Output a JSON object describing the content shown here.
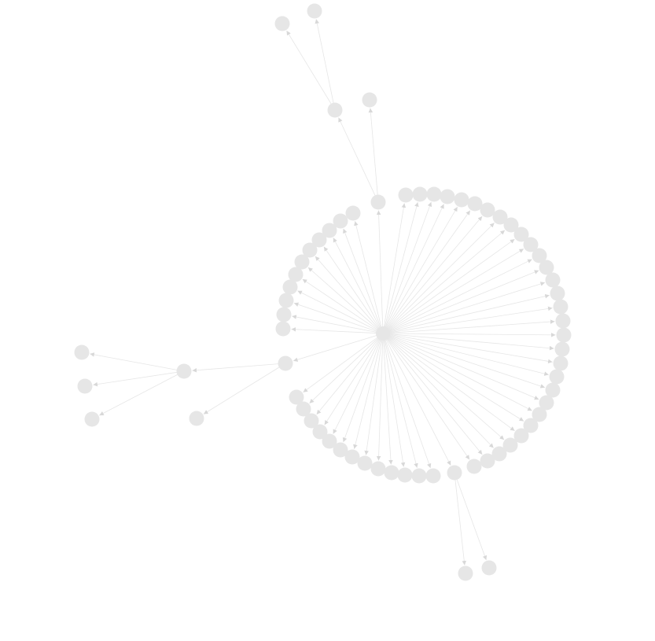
{
  "graph": {
    "type": "directed-graph",
    "node_color": "#e6e6e6",
    "edge_color": "#e6e6e6",
    "background": "#ffffff",
    "hub_outer_ring_count": 58,
    "hub_ring_label": "",
    "labels_shown": false
  }
}
